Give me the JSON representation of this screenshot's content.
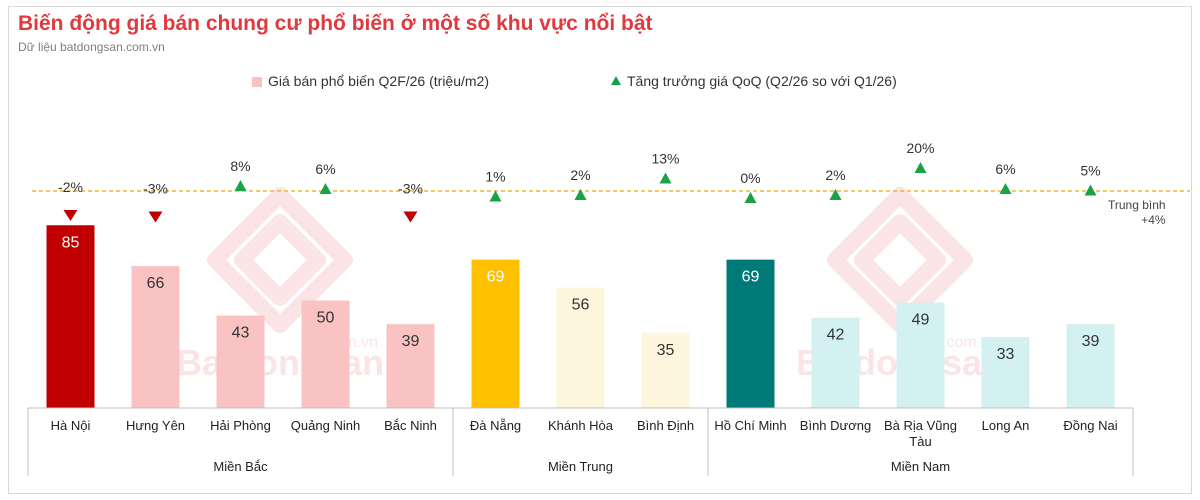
{
  "title": "Biến động giá bán chung cư phổ biến ở một số khu vực nổi bật",
  "subtitle": "Dữ liệu batdongsan.com.vn",
  "legend": {
    "bars": "Giá bán phổ biến Q2F/26 (triệu/m2)",
    "growth": "Tăng trưởng giá QoQ (Q2/26 so với Q1/26)"
  },
  "watermark": {
    "text": "Batdongsan",
    "suffix": ".com.vn"
  },
  "colors": {
    "title": "#e0393e",
    "bar_default": "#f9c3c3",
    "up": "#1aa345",
    "down": "#c00000",
    "avg_line": "#f5b335"
  },
  "average": {
    "label_line1": "Trung bình",
    "label_line2": "+4%",
    "value_pct": 4
  },
  "chart_data": {
    "type": "bar",
    "categories": [
      "Hà Nội",
      "Hưng Yên",
      "Hải Phòng",
      "Quảng Ninh",
      "Bắc Ninh",
      "Đà Nẵng",
      "Khánh Hòa",
      "Bình Định",
      "Hồ Chí Minh",
      "Bình Dương",
      "Bà Rịa Vũng Tàu",
      "Long An",
      "Đồng Nai"
    ],
    "groups": [
      {
        "name": "Miền Bắc",
        "count": 5
      },
      {
        "name": "Miền Trung",
        "count": 3
      },
      {
        "name": "Miền Nam",
        "count": 5
      }
    ],
    "series": [
      {
        "name": "Giá bán phổ biến Q2F/26 (triệu/m2)",
        "values": [
          85,
          66,
          43,
          50,
          39,
          69,
          56,
          35,
          69,
          42,
          49,
          33,
          39
        ],
        "colors": [
          "#c00000",
          "#f9c3c3",
          "#f9c3c3",
          "#f9c3c3",
          "#f9c3c3",
          "#ffc000",
          "#fdf5dc",
          "#fdf5dc",
          "#007a78",
          "#d2f1f0",
          "#d2f1f0",
          "#d2f1f0",
          "#d2f1f0"
        ],
        "label_colors": [
          "#ffffff",
          "#333333",
          "#333333",
          "#333333",
          "#333333",
          "#ffffff",
          "#333333",
          "#333333",
          "#ffffff",
          "#333333",
          "#333333",
          "#333333",
          "#333333"
        ]
      },
      {
        "name": "Tăng trưởng giá QoQ (Q2/26 so với Q1/26)",
        "values": [
          -2,
          -3,
          8,
          6,
          -3,
          1,
          2,
          13,
          0,
          2,
          20,
          6,
          5
        ],
        "unit": "%"
      }
    ],
    "ylim": [
      0,
      100
    ]
  }
}
